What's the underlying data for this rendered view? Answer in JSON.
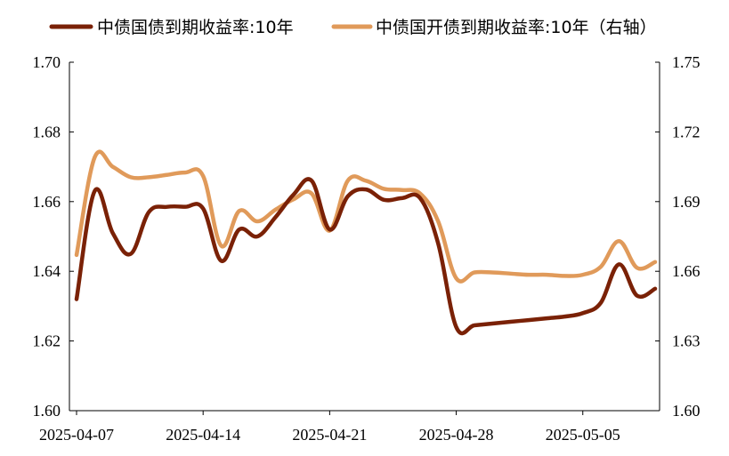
{
  "chart_data": {
    "type": "line",
    "x": [
      "2025-04-07",
      "2025-04-08",
      "2025-04-09",
      "2025-04-10",
      "2025-04-11",
      "2025-04-12",
      "2025-04-13",
      "2025-04-14",
      "2025-04-15",
      "2025-04-16",
      "2025-04-17",
      "2025-04-18",
      "2025-04-19",
      "2025-04-20",
      "2025-04-21",
      "2025-04-22",
      "2025-04-23",
      "2025-04-24",
      "2025-04-25",
      "2025-04-26",
      "2025-04-27",
      "2025-04-28",
      "2025-04-29",
      "2025-04-30",
      "2025-05-01",
      "2025-05-02",
      "2025-05-03",
      "2025-05-04",
      "2025-05-05",
      "2025-05-06",
      "2025-05-07",
      "2025-05-08",
      "2025-05-09"
    ],
    "x_tick_labels": [
      "2025-04-07",
      "2025-04-14",
      "2025-04-21",
      "2025-04-28",
      "2025-05-05"
    ],
    "series": [
      {
        "name": "中债国债到期收益率:10年",
        "axis": "left",
        "color": "#7a2106",
        "values": [
          1.632,
          1.663,
          1.651,
          1.645,
          1.657,
          1.6585,
          1.6585,
          1.658,
          1.643,
          1.652,
          1.65,
          1.6555,
          1.662,
          1.666,
          1.652,
          1.6615,
          1.6635,
          1.6605,
          1.661,
          1.661,
          1.648,
          1.624,
          1.6245,
          1.625,
          1.6255,
          1.626,
          1.6265,
          1.627,
          1.628,
          1.631,
          1.642,
          1.633,
          1.635
        ]
      },
      {
        "name": "中债国开债到期收益率:10年（右轴）",
        "axis": "right",
        "color": "#e09a5a",
        "values": [
          1.667,
          1.709,
          1.705,
          1.7005,
          1.7005,
          1.7015,
          1.7025,
          1.701,
          1.671,
          1.686,
          1.6815,
          1.6865,
          1.691,
          1.6935,
          1.6775,
          1.699,
          1.699,
          1.6955,
          1.695,
          1.6935,
          1.6815,
          1.657,
          1.6595,
          1.6595,
          1.659,
          1.6585,
          1.6585,
          1.658,
          1.6585,
          1.662,
          1.673,
          1.6615,
          1.664
        ]
      }
    ],
    "y_left": {
      "ticks": [
        "1.70",
        "1.68",
        "1.66",
        "1.64",
        "1.62",
        "1.60"
      ],
      "ylim": [
        1.6,
        1.7
      ]
    },
    "y_right": {
      "ticks": [
        "1.75",
        "1.72",
        "1.69",
        "1.66",
        "1.63",
        "1.60"
      ],
      "ylim": [
        1.6,
        1.75
      ]
    },
    "grid": false,
    "legend_position": "top"
  }
}
